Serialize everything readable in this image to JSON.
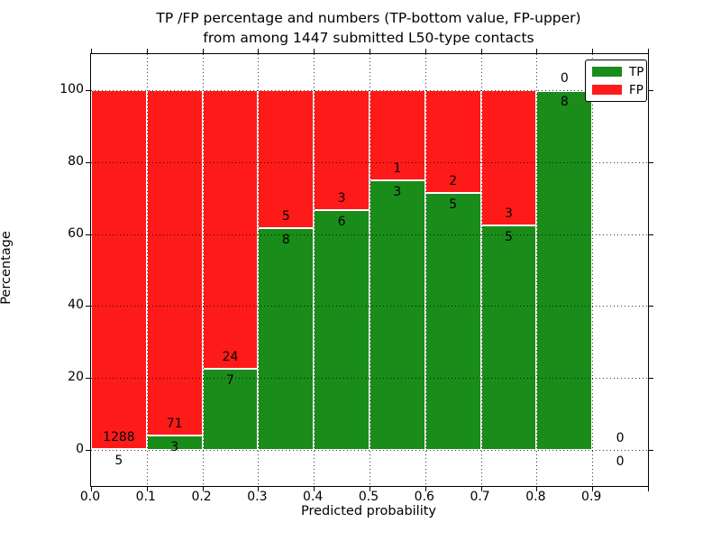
{
  "chart_data": {
    "type": "bar",
    "stacked": true,
    "normalized_to_percent": true,
    "title": "TP /FP percentage and numbers (TP-bottom value, FP-upper)\nfrom among 1447 submitted L50-type contacts",
    "title_line1": "TP /FP percentage and numbers (TP-bottom value, FP-upper)",
    "title_line2": "from among 1447 submitted L50-type contacts",
    "xlabel": "Predicted probability",
    "ylabel": "Percentage",
    "total_contacts": 1447,
    "xlim": [
      0.0,
      1.0
    ],
    "ylim": [
      -10,
      110
    ],
    "grid": "dotted",
    "xtick_labels": [
      "0.0",
      "0.1",
      "0.2",
      "0.3",
      "0.4",
      "0.5",
      "0.6",
      "0.7",
      "0.8",
      "0.9"
    ],
    "xtick_values": [
      0.0,
      0.1,
      0.2,
      0.3,
      0.4,
      0.5,
      0.6,
      0.7,
      0.8,
      0.9
    ],
    "ytick_values": [
      0,
      20,
      40,
      60,
      80,
      100
    ],
    "legend": {
      "position": "upper right",
      "entries": [
        {
          "label": "TP",
          "color": "#1a8c1a"
        },
        {
          "label": "FP",
          "color": "#ff1a1a"
        }
      ]
    },
    "colors": {
      "tp": "#1a8c1a",
      "fp": "#ff1a1a",
      "text": "#000000",
      "background": "#ffffff"
    },
    "bins": [
      {
        "range": [
          0.0,
          0.1
        ],
        "tp": 5,
        "fp": 1288
      },
      {
        "range": [
          0.1,
          0.2
        ],
        "tp": 3,
        "fp": 71
      },
      {
        "range": [
          0.2,
          0.3
        ],
        "tp": 7,
        "fp": 24
      },
      {
        "range": [
          0.3,
          0.4
        ],
        "tp": 8,
        "fp": 5
      },
      {
        "range": [
          0.4,
          0.5
        ],
        "tp": 6,
        "fp": 3
      },
      {
        "range": [
          0.5,
          0.6
        ],
        "tp": 3,
        "fp": 1
      },
      {
        "range": [
          0.6,
          0.7
        ],
        "tp": 5,
        "fp": 2
      },
      {
        "range": [
          0.7,
          0.8
        ],
        "tp": 5,
        "fp": 3
      },
      {
        "range": [
          0.8,
          0.9
        ],
        "tp": 8,
        "fp": 0
      },
      {
        "range": [
          0.9,
          1.0
        ],
        "tp": 0,
        "fp": 0
      }
    ]
  }
}
